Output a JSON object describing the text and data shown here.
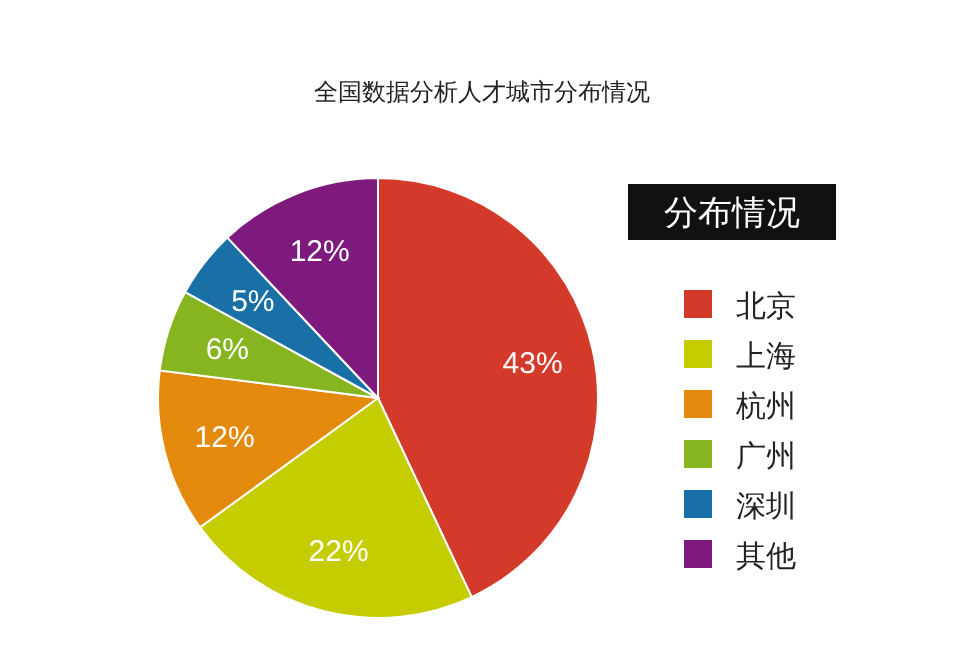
{
  "chart_data": {
    "type": "pie",
    "title": "全国数据分析人才城市分布情况",
    "legend_title": "分布情况",
    "categories": [
      "北京",
      "上海",
      "杭州",
      "广州",
      "深圳",
      "其他"
    ],
    "values": [
      43,
      22,
      12,
      6,
      5,
      12
    ],
    "colors": [
      "#d43a29",
      "#c5cc00",
      "#e38a0c",
      "#86b51f",
      "#1870a6",
      "#7e1a7d"
    ],
    "value_labels": [
      "43%",
      "22%",
      "12%",
      "6%",
      "5%",
      "12%"
    ],
    "legend": "right"
  }
}
